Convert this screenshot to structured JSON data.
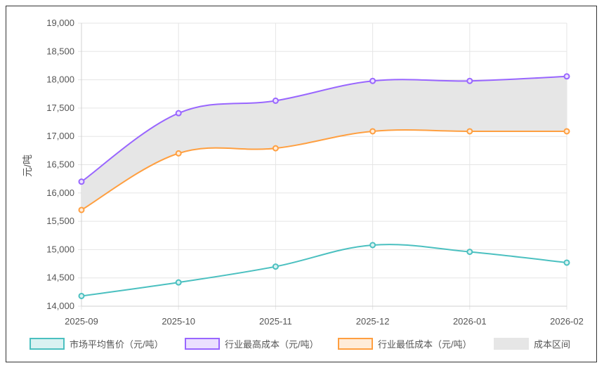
{
  "chart_data": {
    "type": "line",
    "categories": [
      "2025-09",
      "2025-10",
      "2025-11",
      "2025-12",
      "2026-01",
      "2026-02"
    ],
    "ylabel": "元/吨",
    "ylim": [
      14000,
      19000
    ],
    "yticks": [
      "19,000",
      "18,500",
      "18,000",
      "17,500",
      "17,000",
      "16,500",
      "16,000",
      "15,500",
      "15,000",
      "14,500",
      "14,000"
    ],
    "grid": true,
    "legend_position": "bottom",
    "series": [
      {
        "name": "市场平均售价（元/吨）",
        "color": "#4bc0c0",
        "fill": "#d9f2f2",
        "values": [
          14180,
          14420,
          14700,
          15080,
          14960,
          14770
        ]
      },
      {
        "name": "行业最高成本（元/吨）",
        "color": "#9966ff",
        "fill": "#ebe0ff",
        "values": [
          16200,
          17410,
          17630,
          17980,
          17980,
          18060
        ]
      },
      {
        "name": "行业最低成本（元/吨）",
        "color": "#ff9f40",
        "fill": "#ffecd9",
        "values": [
          15700,
          16700,
          16790,
          17090,
          17090,
          17090
        ]
      }
    ],
    "band": {
      "name": "成本区间",
      "color": "#e6e6e6"
    }
  }
}
